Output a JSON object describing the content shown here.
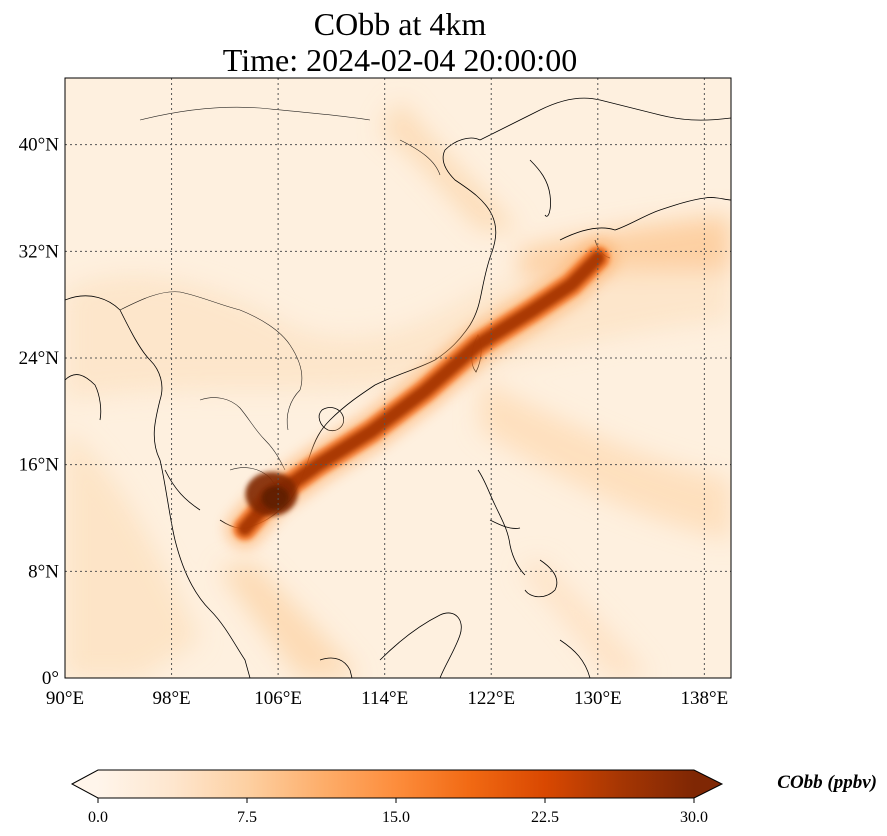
{
  "title": {
    "line1": "CObb at 4km",
    "line2": "Time: 2024-02-04 20:00:00"
  },
  "map": {
    "lon_range": [
      90,
      140
    ],
    "lat_range": [
      0,
      45
    ],
    "lon_ticks": [
      {
        "value": 90,
        "label": "90°E"
      },
      {
        "value": 98,
        "label": "98°E"
      },
      {
        "value": 106,
        "label": "106°E"
      },
      {
        "value": 114,
        "label": "114°E"
      },
      {
        "value": 122,
        "label": "122°E"
      },
      {
        "value": 130,
        "label": "130°E"
      },
      {
        "value": 138,
        "label": "138°E"
      }
    ],
    "lat_ticks": [
      {
        "value": 0,
        "label": "0°"
      },
      {
        "value": 8,
        "label": "8°N"
      },
      {
        "value": 16,
        "label": "16°N"
      },
      {
        "value": 24,
        "label": "24°N"
      },
      {
        "value": 32,
        "label": "32°N"
      },
      {
        "value": 40,
        "label": "40°N"
      }
    ],
    "gridlines": true,
    "plume_track": [
      [
        103.5,
        11.2
      ],
      [
        105.5,
        13.5
      ],
      [
        109,
        16
      ],
      [
        113,
        18.5
      ],
      [
        117,
        21.5
      ],
      [
        121,
        25
      ],
      [
        125,
        27.5
      ],
      [
        128,
        29.5
      ],
      [
        130,
        31.5
      ]
    ],
    "plume_source": [
      105.5,
      13.8
    ]
  },
  "colorbar": {
    "title": "CObb (ppbv)",
    "min": 0.0,
    "max": 30.0,
    "ticks": [
      "0.0",
      "7.5",
      "15.0",
      "22.5",
      "30.0"
    ],
    "colors": [
      "#fff5eb",
      "#fee6ce",
      "#fdd0a2",
      "#fdae6b",
      "#fd8d3c",
      "#f16913",
      "#d94801",
      "#a63603",
      "#7f2704"
    ],
    "extend": "both"
  }
}
